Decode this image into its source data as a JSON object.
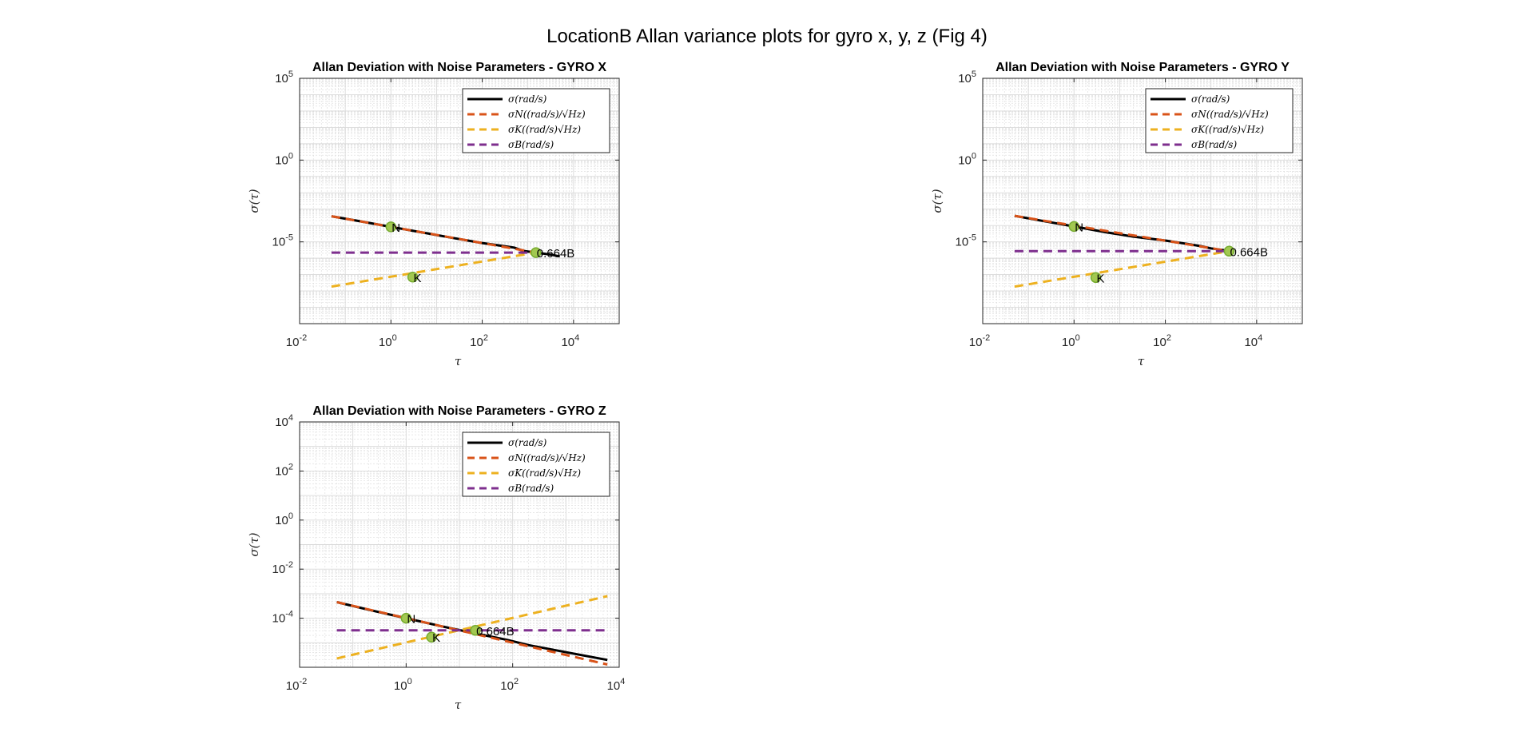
{
  "figure": {
    "title": "LocationB Allan variance plots for gyro x, y, z (Fig 4)"
  },
  "colors": {
    "sigma": "#000000",
    "sigma_n": "#D95319",
    "sigma_k": "#EDB120",
    "sigma_b": "#7E2F8E",
    "marker_fill": "#A2C850",
    "marker_edge": "#77AC30",
    "grid": "#d9d9d9",
    "axis": "#262626"
  },
  "chart_data": [
    {
      "type": "line",
      "title": "Allan Deviation with Noise Parameters - GYRO X",
      "xlabel": "τ",
      "ylabel": "σ(τ)",
      "xscale": "log",
      "yscale": "log",
      "xlim": [
        0.01,
        100000
      ],
      "ylim": [
        1e-10,
        100000
      ],
      "xticks": [
        {
          "base": "10",
          "exp": "-2"
        },
        {
          "base": "10",
          "exp": "0"
        },
        {
          "base": "10",
          "exp": "2"
        },
        {
          "base": "10",
          "exp": "4"
        }
      ],
      "yticks": [
        {
          "base": "10",
          "exp": "5"
        },
        {
          "base": "10",
          "exp": "0"
        },
        {
          "base": "10",
          "exp": "-5"
        }
      ],
      "xtick_values": [
        0.01,
        1,
        100,
        10000
      ],
      "ytick_values": [
        100000,
        1,
        1e-05
      ],
      "grid": true,
      "legend": {
        "placement": "top-right",
        "entries": [
          "σ(rad/s)",
          "σN((rad/s)/√Hz)",
          "σK((rad/s)√Hz)",
          "σB(rad/s)"
        ]
      },
      "series": [
        {
          "name": "σ(rad/s)",
          "style": "solid",
          "x": [
            0.05,
            0.2,
            1,
            5,
            20,
            100,
            300,
            500,
            800,
            1500,
            3000,
            5000
          ],
          "y": [
            0.00037,
            0.000187,
            8.3e-05,
            3.7e-05,
            1.85e-05,
            8.5e-06,
            5.5e-06,
            4.5e-06,
            2.8e-06,
            2.2e-06,
            1.7e-06,
            1.3e-06
          ]
        },
        {
          "name": "σN((rad/s)/√Hz)",
          "style": "dashed",
          "x": [
            0.05,
            1500
          ],
          "y": [
            0.00037,
            2.2e-06
          ]
        },
        {
          "name": "σK((rad/s)√Hz)",
          "style": "dashed",
          "x": [
            0.05,
            1500
          ],
          "y": [
            1.86e-08,
            2.2e-06
          ]
        },
        {
          "name": "σB(rad/s)",
          "style": "dashed",
          "x": [
            0.05,
            1500
          ],
          "y": [
            2.2e-06,
            2.2e-06
          ]
        }
      ],
      "markers": [
        {
          "label": "N",
          "x": 1,
          "y": 8.3e-05
        },
        {
          "label": "K",
          "x": 3,
          "y": 7e-08
        },
        {
          "label": "0.664B",
          "x": 1500,
          "y": 2.2e-06
        }
      ]
    },
    {
      "type": "line",
      "title": "Allan Deviation with Noise Parameters - GYRO Y",
      "xlabel": "τ",
      "ylabel": "σ(τ)",
      "xscale": "log",
      "yscale": "log",
      "xlim": [
        0.01,
        100000
      ],
      "ylim": [
        1e-10,
        100000
      ],
      "xticks": [
        {
          "base": "10",
          "exp": "-2"
        },
        {
          "base": "10",
          "exp": "0"
        },
        {
          "base": "10",
          "exp": "2"
        },
        {
          "base": "10",
          "exp": "4"
        }
      ],
      "yticks": [
        {
          "base": "10",
          "exp": "5"
        },
        {
          "base": "10",
          "exp": "0"
        },
        {
          "base": "10",
          "exp": "-5"
        }
      ],
      "xtick_values": [
        0.01,
        1,
        100,
        10000
      ],
      "ytick_values": [
        100000,
        1,
        1e-05
      ],
      "grid": true,
      "legend": {
        "placement": "top-right",
        "entries": [
          "σ(rad/s)",
          "σN((rad/s)/√Hz)",
          "σK((rad/s)√Hz)",
          "σB(rad/s)"
        ]
      },
      "series": [
        {
          "name": "σ(rad/s)",
          "style": "solid",
          "x": [
            0.05,
            0.2,
            1,
            5,
            20,
            100,
            300,
            600,
            1000,
            2500,
            3000
          ],
          "y": [
            0.00039,
            0.000195,
            8.74e-05,
            3.9e-05,
            2.1e-05,
            1.2e-05,
            7.5e-06,
            5.5e-06,
            4e-06,
            2.8e-06,
            2.6e-06
          ]
        },
        {
          "name": "σN((rad/s)/√Hz)",
          "style": "dashed",
          "x": [
            0.05,
            2500
          ],
          "y": [
            0.00039,
            2.7e-06
          ]
        },
        {
          "name": "σK((rad/s)√Hz)",
          "style": "dashed",
          "x": [
            0.05,
            2500
          ],
          "y": [
            1.85e-08,
            2.7e-06
          ]
        },
        {
          "name": "σB(rad/s)",
          "style": "dashed",
          "x": [
            0.05,
            2500
          ],
          "y": [
            2.7e-06,
            2.7e-06
          ]
        }
      ],
      "markers": [
        {
          "label": "N",
          "x": 1,
          "y": 8.74e-05
        },
        {
          "label": "K",
          "x": 3,
          "y": 6.6e-08
        },
        {
          "label": "0.664B",
          "x": 2500,
          "y": 2.7e-06
        }
      ]
    },
    {
      "type": "line",
      "title": "Allan Deviation with Noise Parameters - GYRO Z",
      "xlabel": "τ",
      "ylabel": "σ(τ)",
      "xscale": "log",
      "yscale": "log",
      "xlim": [
        0.01,
        10000
      ],
      "ylim": [
        1e-06,
        10000
      ],
      "xticks": [
        {
          "base": "10",
          "exp": "-2"
        },
        {
          "base": "10",
          "exp": "0"
        },
        {
          "base": "10",
          "exp": "2"
        },
        {
          "base": "10",
          "exp": "4"
        }
      ],
      "yticks": [
        {
          "base": "10",
          "exp": "4"
        },
        {
          "base": "10",
          "exp": "2"
        },
        {
          "base": "10",
          "exp": "0"
        },
        {
          "base": "10",
          "exp": "-2"
        },
        {
          "base": "10",
          "exp": "-4"
        }
      ],
      "xtick_values": [
        0.01,
        1,
        100,
        10000
      ],
      "ytick_values": [
        10000,
        100,
        1,
        0.01,
        0.0001
      ],
      "grid": true,
      "legend": {
        "placement": "top-right",
        "entries": [
          "σ(rad/s)",
          "σN((rad/s)/√Hz)",
          "σK((rad/s)√Hz)",
          "σB(rad/s)"
        ]
      },
      "series": [
        {
          "name": "σ(rad/s)",
          "style": "solid",
          "x": [
            0.05,
            0.2,
            1,
            5,
            20,
            80,
            200,
            500,
            1500,
            6000
          ],
          "y": [
            0.00045,
            0.00022,
            0.0001,
            4.5e-05,
            2.4e-05,
            1.3e-05,
            8e-06,
            5.5e-06,
            3.5e-06,
            2e-06
          ]
        },
        {
          "name": "σN((rad/s)/√Hz)",
          "style": "dashed",
          "x": [
            0.05,
            6000
          ],
          "y": [
            0.00045,
            1.3e-06
          ]
        },
        {
          "name": "σK((rad/s)√Hz)",
          "style": "dashed",
          "x": [
            0.05,
            6000
          ],
          "y": [
            2.3e-06,
            0.00079
          ]
        },
        {
          "name": "σB(rad/s)",
          "style": "dashed",
          "x": [
            0.05,
            6000
          ],
          "y": [
            3.2e-05,
            3.2e-05
          ]
        }
      ],
      "markers": [
        {
          "label": "N",
          "x": 1,
          "y": 0.0001
        },
        {
          "label": "K",
          "x": 3,
          "y": 1.7e-05
        },
        {
          "label": "0.664B",
          "x": 20,
          "y": 3.2e-05
        }
      ]
    }
  ]
}
